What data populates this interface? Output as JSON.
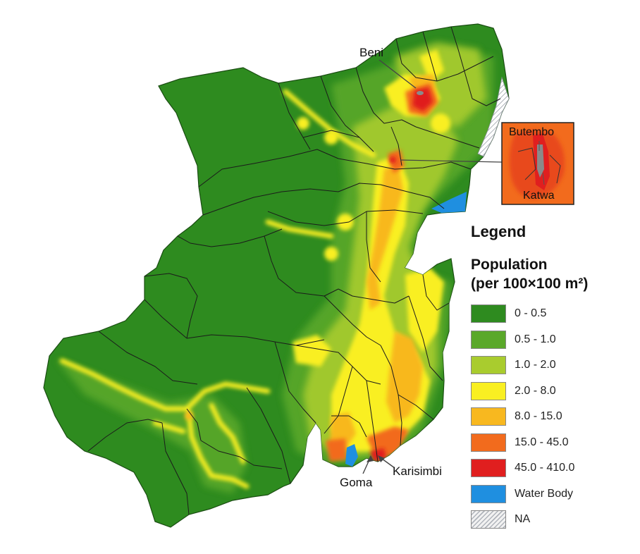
{
  "map": {
    "cities": [
      {
        "name": "Beni"
      },
      {
        "name": "Butembo"
      },
      {
        "name": "Katwa"
      },
      {
        "name": "Goma"
      },
      {
        "name": "Karisimbi"
      }
    ]
  },
  "legend": {
    "title": "Legend",
    "subtitle_line1": "Population",
    "subtitle_line2": "(per 100×100 m²)",
    "items": [
      {
        "label": "0 - 0.5",
        "color": "#2e8b1f"
      },
      {
        "label": "0.5 - 1.0",
        "color": "#5aa82a"
      },
      {
        "label": "1.0 - 2.0",
        "color": "#a9cc2e"
      },
      {
        "label": "2.0 - 8.0",
        "color": "#f9ef22"
      },
      {
        "label": "8.0 - 15.0",
        "color": "#f8b81f"
      },
      {
        "label": "15.0 - 45.0",
        "color": "#f26b1d"
      },
      {
        "label": "45.0 - 410.0",
        "color": "#e01f1f"
      },
      {
        "label": "Water Body",
        "color": "#1f8fe0"
      },
      {
        "label": "NA",
        "color": "hatched"
      }
    ]
  }
}
